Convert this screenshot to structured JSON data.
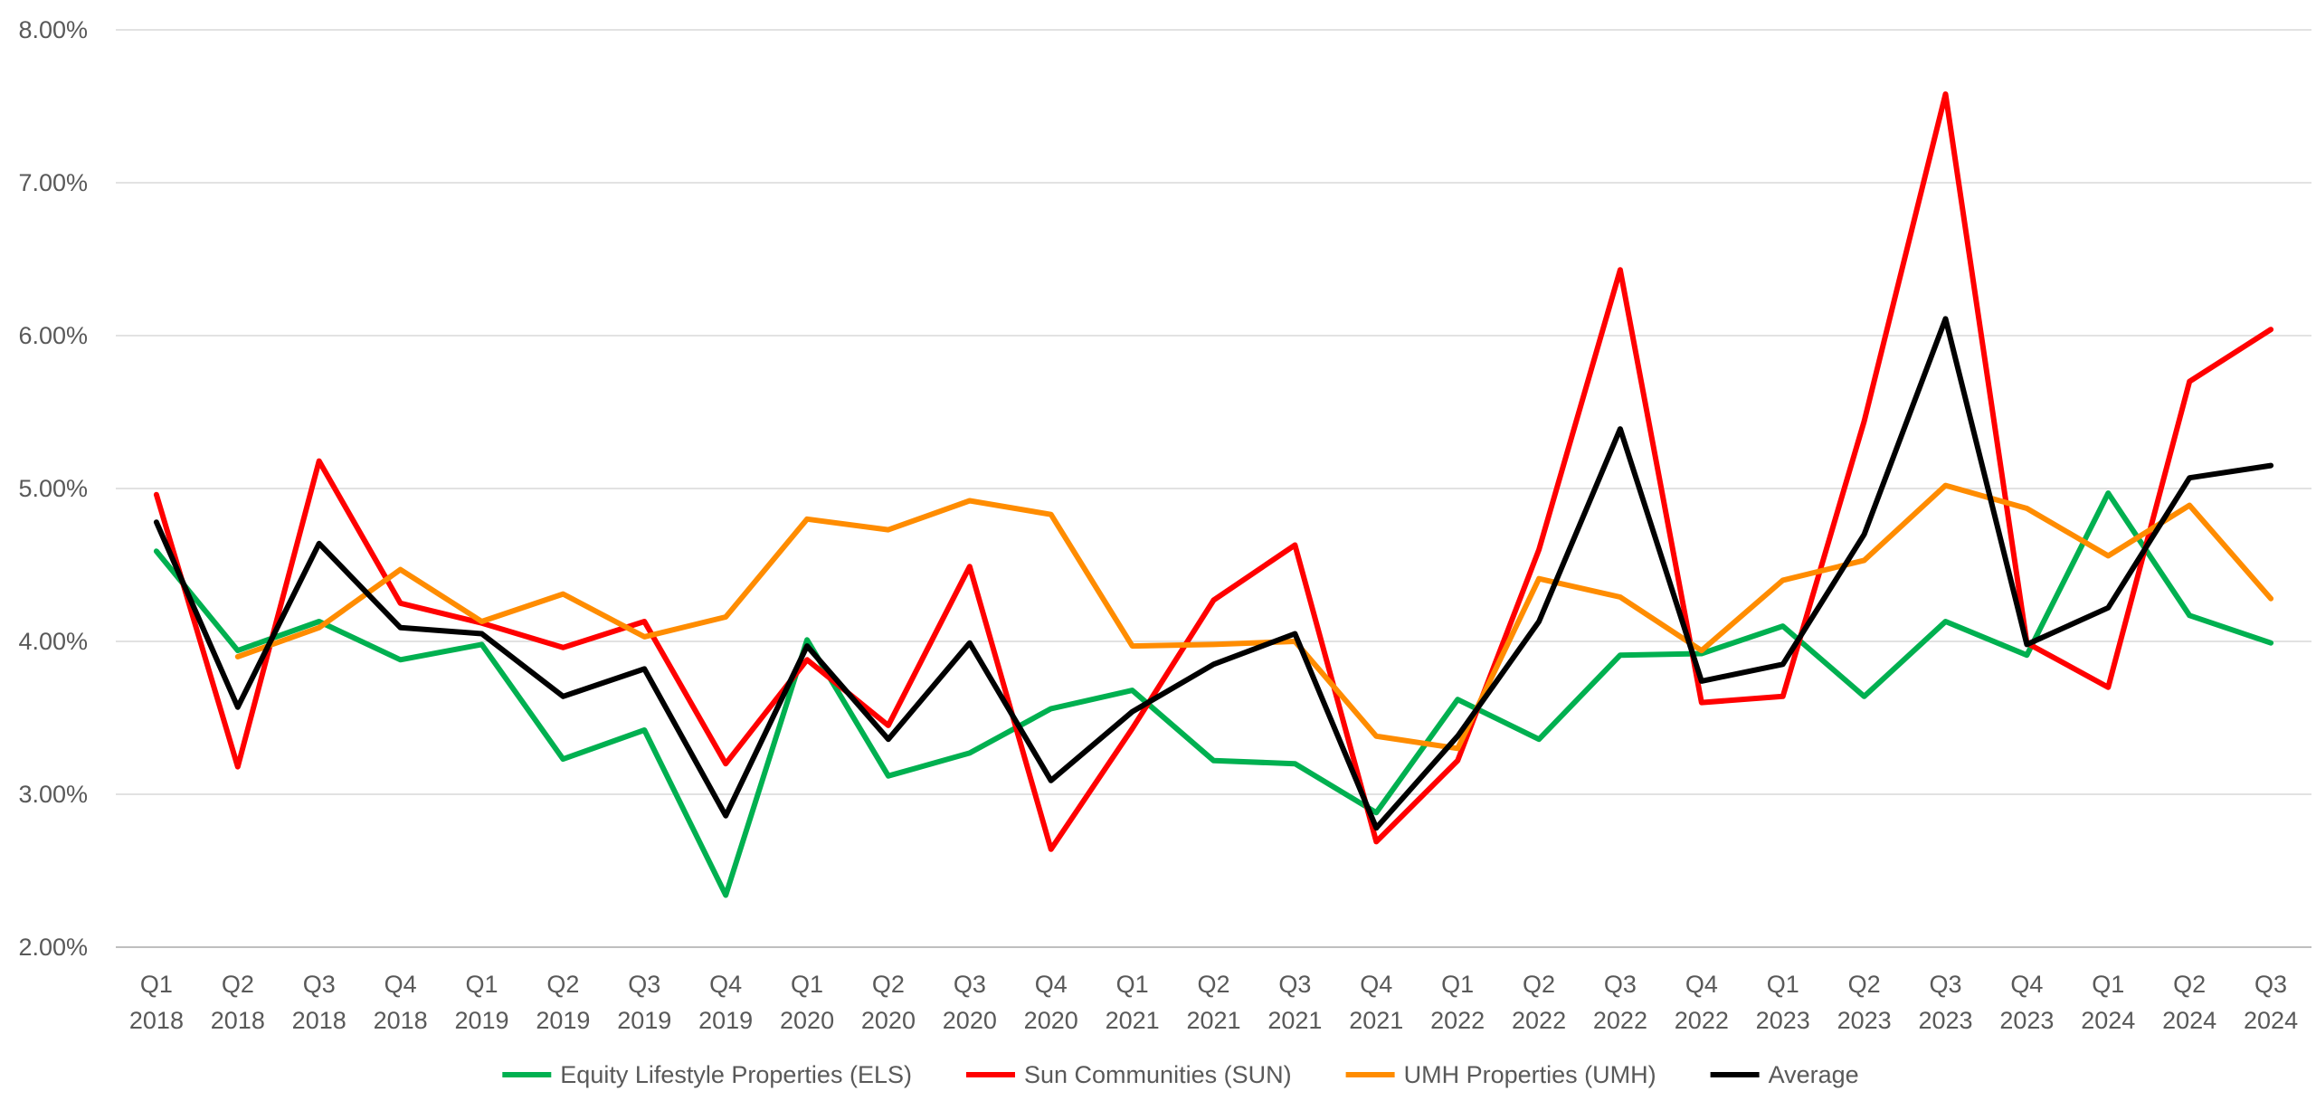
{
  "chart_data": {
    "type": "line",
    "title": "",
    "xlabel": "",
    "ylabel": "",
    "ylim": [
      0.02,
      0.08
    ],
    "yticks": [
      0.02,
      0.03,
      0.04,
      0.05,
      0.06,
      0.07,
      0.08
    ],
    "ytick_labels": [
      "2.00%",
      "3.00%",
      "4.00%",
      "5.00%",
      "6.00%",
      "7.00%",
      "8.00%"
    ],
    "grid": true,
    "legend_position": "bottom",
    "categories": [
      [
        "Q1",
        "2018"
      ],
      [
        "Q2",
        "2018"
      ],
      [
        "Q3",
        "2018"
      ],
      [
        "Q4",
        "2018"
      ],
      [
        "Q1",
        "2019"
      ],
      [
        "Q2",
        "2019"
      ],
      [
        "Q3",
        "2019"
      ],
      [
        "Q4",
        "2019"
      ],
      [
        "Q1",
        "2020"
      ],
      [
        "Q2",
        "2020"
      ],
      [
        "Q3",
        "2020"
      ],
      [
        "Q4",
        "2020"
      ],
      [
        "Q1",
        "2021"
      ],
      [
        "Q2",
        "2021"
      ],
      [
        "Q3",
        "2021"
      ],
      [
        "Q4",
        "2021"
      ],
      [
        "Q1",
        "2022"
      ],
      [
        "Q2",
        "2022"
      ],
      [
        "Q3",
        "2022"
      ],
      [
        "Q4",
        "2022"
      ],
      [
        "Q1",
        "2023"
      ],
      [
        "Q2",
        "2023"
      ],
      [
        "Q3",
        "2023"
      ],
      [
        "Q4",
        "2023"
      ],
      [
        "Q1",
        "2024"
      ],
      [
        "Q2",
        "2024"
      ],
      [
        "Q3",
        "2024"
      ]
    ],
    "series": [
      {
        "name": "Equity Lifestyle Properties (ELS)",
        "color": "#00b050",
        "values": [
          0.0459,
          0.0394,
          0.0413,
          0.0388,
          0.0398,
          0.0323,
          0.0342,
          0.0234,
          0.0401,
          0.0312,
          0.0327,
          0.0356,
          0.0368,
          0.0322,
          0.032,
          0.0288,
          0.0362,
          0.0336,
          0.0391,
          0.0392,
          0.041,
          0.0364,
          0.0413,
          0.0391,
          0.0497,
          0.0417,
          0.0399
        ]
      },
      {
        "name": "Sun Communities (SUN)",
        "color": "#ff0000",
        "values": [
          0.0496,
          0.0318,
          0.0518,
          0.0425,
          0.0412,
          0.0396,
          0.0413,
          0.032,
          0.0388,
          0.0345,
          0.0449,
          0.0264,
          0.0343,
          0.0427,
          0.0463,
          0.0269,
          0.0322,
          0.046,
          0.0643,
          0.036,
          0.0364,
          0.0544,
          0.0758,
          0.0399,
          0.037,
          0.057,
          0.0604
        ]
      },
      {
        "name": "UMH Properties (UMH)",
        "color": "#ff8c00",
        "values": [
          null,
          0.039,
          0.0409,
          0.0447,
          0.0413,
          0.0431,
          0.0403,
          0.0416,
          0.048,
          0.0473,
          0.0492,
          0.0483,
          0.0397,
          0.0398,
          0.04,
          0.0338,
          0.033,
          0.0441,
          0.0429,
          0.0394,
          0.044,
          0.0453,
          0.0502,
          0.0487,
          0.0456,
          0.0489,
          0.0428
        ]
      },
      {
        "name": "Average",
        "color": "#000000",
        "values": [
          0.0478,
          0.0357,
          0.0464,
          0.0409,
          0.0405,
          0.0364,
          0.0382,
          0.0286,
          0.0397,
          0.0336,
          0.0399,
          0.0309,
          0.0354,
          0.0385,
          0.0405,
          0.0278,
          0.0338,
          0.0413,
          0.0539,
          0.0374,
          0.0385,
          0.047,
          0.0611,
          0.0398,
          0.0422,
          0.0507,
          0.0515
        ]
      }
    ]
  }
}
